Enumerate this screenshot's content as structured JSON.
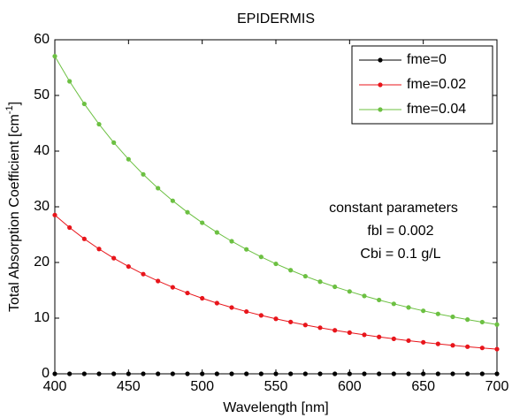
{
  "chart_data": {
    "type": "line",
    "title": "EPIDERMIS",
    "xlabel": "Wavelength [nm]",
    "ylabel": {
      "text": "Total Absorption Coefficient [cm",
      "sup": "-1",
      "end": "]"
    },
    "x": [
      400,
      410,
      420,
      430,
      440,
      450,
      460,
      470,
      480,
      490,
      500,
      510,
      520,
      530,
      540,
      550,
      560,
      570,
      580,
      590,
      600,
      610,
      620,
      630,
      640,
      650,
      660,
      670,
      680,
      690,
      700
    ],
    "series": [
      {
        "name": "fme=0",
        "color": "#000000",
        "values": [
          0,
          0,
          0,
          0,
          0,
          0,
          0,
          0,
          0,
          0,
          0,
          0,
          0,
          0,
          0,
          0,
          0,
          0,
          0,
          0,
          0,
          0,
          0,
          0,
          0,
          0,
          0,
          0,
          0,
          0,
          0
        ]
      },
      {
        "name": "fme=0.02",
        "color": "#e8151b",
        "values": [
          28.52,
          26.27,
          24.24,
          22.42,
          20.77,
          19.27,
          17.91,
          16.67,
          15.54,
          14.51,
          13.57,
          12.7,
          11.91,
          11.18,
          10.5,
          9.88,
          9.31,
          8.77,
          8.28,
          7.82,
          7.4,
          7.0,
          6.63,
          6.29,
          5.96,
          5.66,
          5.38,
          5.12,
          4.87,
          4.65,
          4.43
        ]
      },
      {
        "name": "fme=0.04",
        "color": "#6cc042",
        "values": [
          57.04,
          52.54,
          48.48,
          44.83,
          41.53,
          38.54,
          35.82,
          33.34,
          31.08,
          29.02,
          27.13,
          25.4,
          23.81,
          22.35,
          21.0,
          19.75,
          18.61,
          17.53,
          16.55,
          15.63,
          14.79,
          13.99,
          13.26,
          12.57,
          11.92,
          11.32,
          10.76,
          10.24,
          9.74,
          9.29,
          8.85
        ]
      }
    ],
    "annotations": [
      "constant parameters",
      "fbl  = 0.002",
      "Cbi = 0.1 g/L"
    ],
    "xlim": [
      400,
      700
    ],
    "xticks": [
      400,
      450,
      500,
      550,
      600,
      650,
      700
    ],
    "ylim": [
      0,
      60
    ],
    "yticks": [
      0,
      10,
      20,
      30,
      40,
      50,
      60
    ],
    "grid": false,
    "legend": "upper right"
  }
}
